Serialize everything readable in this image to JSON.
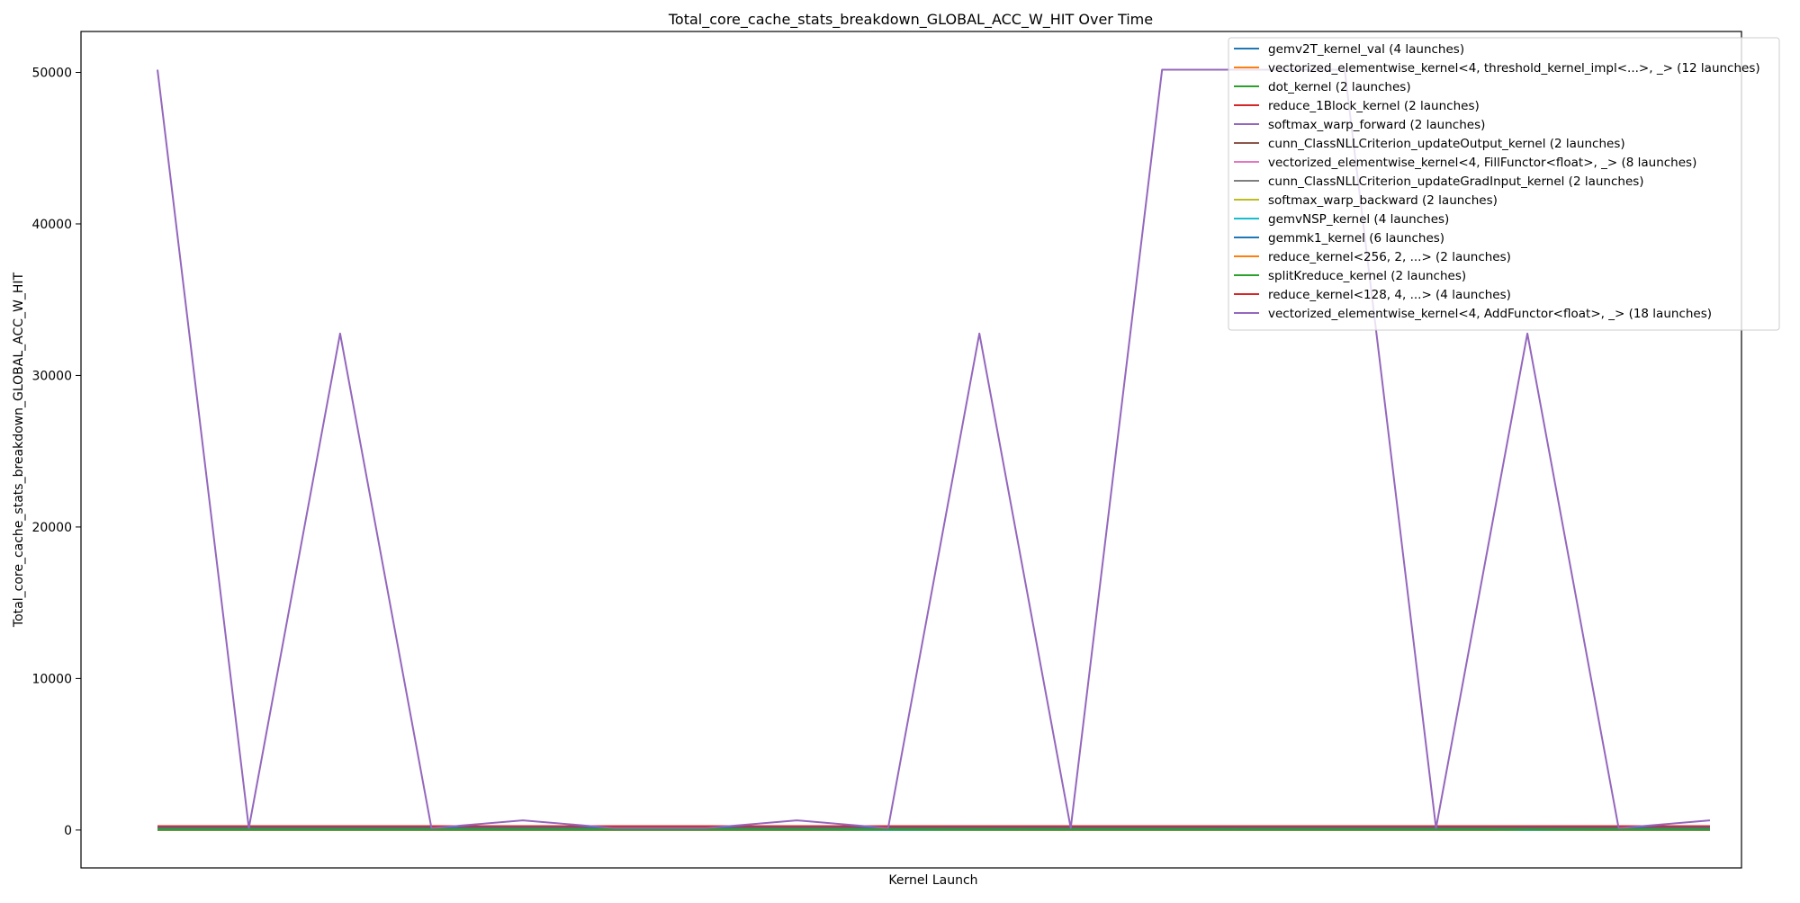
{
  "chart_data": {
    "type": "line",
    "title": "Total_core_cache_stats_breakdown_GLOBAL_ACC_W_HIT Over Time",
    "xlabel": "Kernel Launch",
    "ylabel": "Total_core_cache_stats_breakdown_GLOBAL_ACC_W_HIT",
    "x_ticks_visible": false,
    "x_range": [
      1,
      18
    ],
    "ylim": [
      -2500,
      52700
    ],
    "yticks": [
      0,
      10000,
      20000,
      30000,
      40000,
      50000
    ],
    "ytick_labels": [
      "0",
      "10000",
      "20000",
      "30000",
      "40000",
      "50000"
    ],
    "grid": false,
    "legend_position": "top-right",
    "series": [
      {
        "name": "gemv2T_kernel_val (4 launches)",
        "color": "#1f77b4",
        "x": [
          1,
          18
        ],
        "values": [
          192,
          192
        ]
      },
      {
        "name": "vectorized_elementwise_kernel<4, threshold_kernel_impl<...>, _> (12 launches)",
        "color": "#ff7f0e",
        "x": [
          1,
          18
        ],
        "values": [
          128,
          128
        ]
      },
      {
        "name": "dot_kernel (2 launches)",
        "color": "#2ca02c",
        "x": [
          1,
          18
        ],
        "values": [
          0,
          0
        ]
      },
      {
        "name": "reduce_1Block_kernel (2 launches)",
        "color": "#d62728",
        "x": [
          1,
          18
        ],
        "values": [
          256,
          256
        ]
      },
      {
        "name": "softmax_warp_forward (2 launches)",
        "color": "#9467bd",
        "x": [
          1,
          18
        ],
        "values": [
          64,
          64
        ]
      },
      {
        "name": "cunn_ClassNLLCriterion_updateOutput_kernel (2 launches)",
        "color": "#8c564b",
        "x": [
          1,
          18
        ],
        "values": [
          16,
          16
        ]
      },
      {
        "name": "vectorized_elementwise_kernel<4, FillFunctor<float>, _> (8 launches)",
        "color": "#e377c2",
        "x": [
          1,
          18
        ],
        "values": [
          100,
          100
        ]
      },
      {
        "name": "cunn_ClassNLLCriterion_updateGradInput_kernel (2 launches)",
        "color": "#7f7f7f",
        "x": [
          1,
          18
        ],
        "values": [
          32,
          32
        ]
      },
      {
        "name": "softmax_warp_backward (2 launches)",
        "color": "#bcbd22",
        "x": [
          1,
          18
        ],
        "values": [
          64,
          64
        ]
      },
      {
        "name": "gemvNSP_kernel (4 launches)",
        "color": "#17becf",
        "x": [
          1,
          7,
          9,
          13,
          15,
          16,
          18
        ],
        "values": [
          128,
          128,
          0,
          128,
          128,
          0,
          128
        ]
      },
      {
        "name": "gemmk1_kernel (6 launches)",
        "color": "#1f77b4",
        "x": [
          1,
          18
        ],
        "values": [
          128,
          128
        ]
      },
      {
        "name": "reduce_kernel<256, 2, ...> (2 launches)",
        "color": "#ff7f0e",
        "x": [
          1,
          18
        ],
        "values": [
          32,
          32
        ]
      },
      {
        "name": "splitKreduce_kernel (2 launches)",
        "color": "#2ca02c",
        "x": [
          1,
          18
        ],
        "values": [
          32,
          32
        ]
      },
      {
        "name": "reduce_kernel<128, 4, ...> (4 launches)",
        "color": "#d62728",
        "x": [
          1,
          18
        ],
        "values": [
          256,
          256
        ]
      },
      {
        "name": "vectorized_elementwise_kernel<4, AddFunctor<float>, _> (18 launches)",
        "color": "#9467bd",
        "x": [
          1,
          2,
          3,
          4,
          5,
          6,
          7,
          8,
          9,
          10,
          11,
          12,
          13,
          14,
          15,
          16,
          17,
          18
        ],
        "values": [
          50176,
          128,
          32768,
          128,
          640,
          128,
          128,
          640,
          128,
          32768,
          128,
          50176,
          50176,
          50176,
          128,
          32768,
          128,
          640
        ]
      }
    ]
  }
}
